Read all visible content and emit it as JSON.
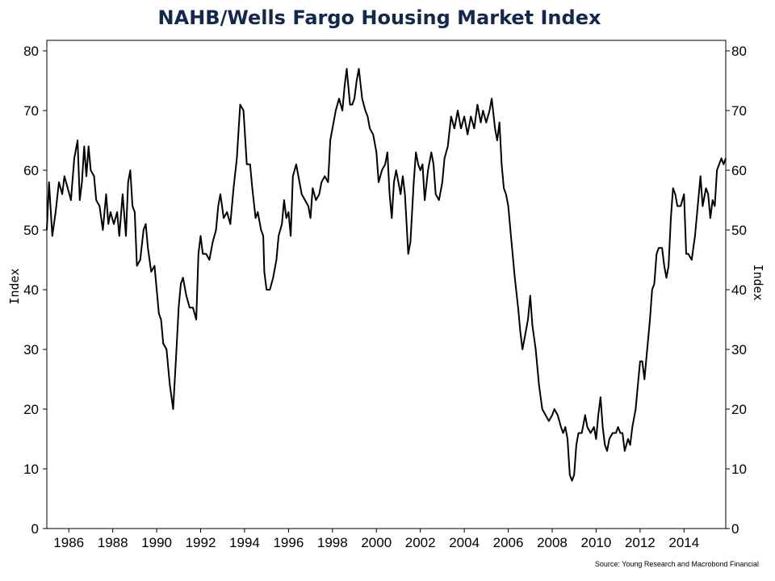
{
  "chart_data": {
    "type": "line",
    "title": "NAHB/Wells Fargo Housing Market Index",
    "ylabel_left": "Index",
    "ylabel_right": "Index",
    "source": "Source: Young Research and Macrobond Financial",
    "ylim": [
      0,
      80
    ],
    "xlim": [
      1985.0,
      2015.9
    ],
    "y_ticks": [
      0,
      10,
      20,
      30,
      40,
      50,
      60,
      70,
      80
    ],
    "x_ticks": [
      1986,
      1988,
      1990,
      1992,
      1994,
      1996,
      1998,
      2000,
      2002,
      2004,
      2006,
      2008,
      2010,
      2012,
      2014
    ],
    "grid": false,
    "series": [
      {
        "color": "#000000",
        "points": [
          [
            1985.0,
            50
          ],
          [
            1985.1,
            58
          ],
          [
            1985.25,
            49
          ],
          [
            1985.4,
            53
          ],
          [
            1985.55,
            58
          ],
          [
            1985.7,
            56
          ],
          [
            1985.8,
            59
          ],
          [
            1985.95,
            57
          ],
          [
            1986.1,
            55
          ],
          [
            1986.25,
            62
          ],
          [
            1986.4,
            65
          ],
          [
            1986.5,
            55
          ],
          [
            1986.6,
            58
          ],
          [
            1986.7,
            64
          ],
          [
            1986.8,
            59
          ],
          [
            1986.9,
            64
          ],
          [
            1987.0,
            60
          ],
          [
            1987.15,
            59
          ],
          [
            1987.25,
            55
          ],
          [
            1987.4,
            54
          ],
          [
            1987.55,
            50
          ],
          [
            1987.7,
            56
          ],
          [
            1987.8,
            51
          ],
          [
            1987.9,
            53
          ],
          [
            1988.05,
            51
          ],
          [
            1988.2,
            53
          ],
          [
            1988.3,
            49
          ],
          [
            1988.45,
            56
          ],
          [
            1988.6,
            49
          ],
          [
            1988.7,
            58
          ],
          [
            1988.8,
            60
          ],
          [
            1988.9,
            54
          ],
          [
            1989.0,
            53
          ],
          [
            1989.1,
            44
          ],
          [
            1989.25,
            45
          ],
          [
            1989.4,
            50
          ],
          [
            1989.5,
            51
          ],
          [
            1989.6,
            47
          ],
          [
            1989.75,
            43
          ],
          [
            1989.9,
            44
          ],
          [
            1990.0,
            40
          ],
          [
            1990.1,
            36
          ],
          [
            1990.2,
            35
          ],
          [
            1990.3,
            31
          ],
          [
            1990.45,
            30
          ],
          [
            1990.6,
            24
          ],
          [
            1990.75,
            20
          ],
          [
            1990.9,
            30
          ],
          [
            1991.0,
            37
          ],
          [
            1991.1,
            41
          ],
          [
            1991.2,
            42
          ],
          [
            1991.35,
            39
          ],
          [
            1991.5,
            37
          ],
          [
            1991.65,
            37
          ],
          [
            1991.8,
            35
          ],
          [
            1991.9,
            46
          ],
          [
            1992.0,
            49
          ],
          [
            1992.1,
            46
          ],
          [
            1992.25,
            46
          ],
          [
            1992.4,
            45
          ],
          [
            1992.55,
            48
          ],
          [
            1992.7,
            50
          ],
          [
            1992.8,
            54
          ],
          [
            1992.9,
            56
          ],
          [
            1993.05,
            52
          ],
          [
            1993.2,
            53
          ],
          [
            1993.35,
            51
          ],
          [
            1993.5,
            57
          ],
          [
            1993.65,
            62
          ],
          [
            1993.8,
            71
          ],
          [
            1993.95,
            70
          ],
          [
            1994.1,
            61
          ],
          [
            1994.25,
            61
          ],
          [
            1994.35,
            57
          ],
          [
            1994.5,
            52
          ],
          [
            1994.6,
            53
          ],
          [
            1994.75,
            50
          ],
          [
            1994.85,
            49
          ],
          [
            1994.9,
            43
          ],
          [
            1995.0,
            40
          ],
          [
            1995.15,
            40
          ],
          [
            1995.3,
            42
          ],
          [
            1995.45,
            45
          ],
          [
            1995.55,
            49
          ],
          [
            1995.7,
            51
          ],
          [
            1995.8,
            55
          ],
          [
            1995.9,
            52
          ],
          [
            1996.0,
            53
          ],
          [
            1996.1,
            49
          ],
          [
            1996.2,
            59
          ],
          [
            1996.35,
            61
          ],
          [
            1996.5,
            58
          ],
          [
            1996.6,
            56
          ],
          [
            1996.75,
            55
          ],
          [
            1996.9,
            54
          ],
          [
            1997.0,
            52
          ],
          [
            1997.1,
            57
          ],
          [
            1997.25,
            55
          ],
          [
            1997.4,
            56
          ],
          [
            1997.5,
            58
          ],
          [
            1997.65,
            59
          ],
          [
            1997.8,
            58
          ],
          [
            1997.9,
            65
          ],
          [
            1998.0,
            67
          ],
          [
            1998.15,
            70
          ],
          [
            1998.3,
            72
          ],
          [
            1998.45,
            70
          ],
          [
            1998.55,
            74
          ],
          [
            1998.65,
            77
          ],
          [
            1998.8,
            71
          ],
          [
            1998.9,
            71
          ],
          [
            1999.0,
            72
          ],
          [
            1999.1,
            75
          ],
          [
            1999.2,
            77
          ],
          [
            1999.35,
            72
          ],
          [
            1999.5,
            70
          ],
          [
            1999.6,
            69
          ],
          [
            1999.7,
            67
          ],
          [
            1999.85,
            66
          ],
          [
            2000.0,
            63
          ],
          [
            2000.1,
            58
          ],
          [
            2000.25,
            60
          ],
          [
            2000.4,
            61
          ],
          [
            2000.5,
            63
          ],
          [
            2000.6,
            56
          ],
          [
            2000.7,
            52
          ],
          [
            2000.8,
            58
          ],
          [
            2000.9,
            60
          ],
          [
            2001.0,
            58
          ],
          [
            2001.1,
            56
          ],
          [
            2001.2,
            59
          ],
          [
            2001.3,
            56
          ],
          [
            2001.45,
            46
          ],
          [
            2001.55,
            48
          ],
          [
            2001.7,
            58
          ],
          [
            2001.8,
            63
          ],
          [
            2001.9,
            61
          ],
          [
            2002.0,
            60
          ],
          [
            2002.1,
            61
          ],
          [
            2002.2,
            55
          ],
          [
            2002.35,
            60
          ],
          [
            2002.5,
            63
          ],
          [
            2002.6,
            61
          ],
          [
            2002.7,
            56
          ],
          [
            2002.85,
            55
          ],
          [
            2003.0,
            58
          ],
          [
            2003.1,
            62
          ],
          [
            2003.25,
            64
          ],
          [
            2003.4,
            69
          ],
          [
            2003.55,
            67
          ],
          [
            2003.7,
            70
          ],
          [
            2003.85,
            67
          ],
          [
            2004.0,
            69
          ],
          [
            2004.15,
            66
          ],
          [
            2004.3,
            69
          ],
          [
            2004.45,
            67
          ],
          [
            2004.6,
            71
          ],
          [
            2004.75,
            68
          ],
          [
            2004.85,
            70
          ],
          [
            2005.0,
            68
          ],
          [
            2005.15,
            70
          ],
          [
            2005.25,
            72
          ],
          [
            2005.4,
            67
          ],
          [
            2005.5,
            65
          ],
          [
            2005.6,
            68
          ],
          [
            2005.7,
            61
          ],
          [
            2005.8,
            57
          ],
          [
            2005.9,
            56
          ],
          [
            2006.0,
            54
          ],
          [
            2006.15,
            48
          ],
          [
            2006.3,
            42
          ],
          [
            2006.45,
            37
          ],
          [
            2006.55,
            33
          ],
          [
            2006.65,
            30
          ],
          [
            2006.8,
            33
          ],
          [
            2006.9,
            35
          ],
          [
            2007.0,
            39
          ],
          [
            2007.1,
            34
          ],
          [
            2007.25,
            30
          ],
          [
            2007.4,
            24
          ],
          [
            2007.55,
            20
          ],
          [
            2007.7,
            19
          ],
          [
            2007.85,
            18
          ],
          [
            2008.0,
            19
          ],
          [
            2008.1,
            20
          ],
          [
            2008.25,
            19
          ],
          [
            2008.4,
            17
          ],
          [
            2008.5,
            16
          ],
          [
            2008.6,
            17
          ],
          [
            2008.7,
            15
          ],
          [
            2008.8,
            9
          ],
          [
            2008.9,
            8
          ],
          [
            2009.0,
            9
          ],
          [
            2009.1,
            14
          ],
          [
            2009.2,
            16
          ],
          [
            2009.35,
            16
          ],
          [
            2009.5,
            19
          ],
          [
            2009.6,
            17
          ],
          [
            2009.75,
            16
          ],
          [
            2009.9,
            17
          ],
          [
            2010.0,
            15
          ],
          [
            2010.1,
            19
          ],
          [
            2010.2,
            22
          ],
          [
            2010.3,
            17
          ],
          [
            2010.4,
            14
          ],
          [
            2010.5,
            13
          ],
          [
            2010.6,
            15
          ],
          [
            2010.75,
            16
          ],
          [
            2010.9,
            16
          ],
          [
            2011.0,
            17
          ],
          [
            2011.1,
            16
          ],
          [
            2011.2,
            16
          ],
          [
            2011.3,
            13
          ],
          [
            2011.45,
            15
          ],
          [
            2011.55,
            14
          ],
          [
            2011.65,
            17
          ],
          [
            2011.8,
            20
          ],
          [
            2011.9,
            24
          ],
          [
            2012.0,
            28
          ],
          [
            2012.1,
            28
          ],
          [
            2012.2,
            25
          ],
          [
            2012.3,
            29
          ],
          [
            2012.45,
            35
          ],
          [
            2012.55,
            40
          ],
          [
            2012.65,
            41
          ],
          [
            2012.75,
            46
          ],
          [
            2012.85,
            47
          ],
          [
            2013.0,
            47
          ],
          [
            2013.1,
            44
          ],
          [
            2013.2,
            42
          ],
          [
            2013.3,
            44
          ],
          [
            2013.4,
            52
          ],
          [
            2013.5,
            57
          ],
          [
            2013.6,
            56
          ],
          [
            2013.7,
            54
          ],
          [
            2013.85,
            54
          ],
          [
            2014.0,
            56
          ],
          [
            2014.1,
            46
          ],
          [
            2014.2,
            46
          ],
          [
            2014.35,
            45
          ],
          [
            2014.5,
            49
          ],
          [
            2014.6,
            53
          ],
          [
            2014.75,
            59
          ],
          [
            2014.85,
            54
          ],
          [
            2015.0,
            57
          ],
          [
            2015.1,
            56
          ],
          [
            2015.2,
            52
          ],
          [
            2015.3,
            55
          ],
          [
            2015.4,
            54
          ],
          [
            2015.5,
            60
          ],
          [
            2015.6,
            61
          ],
          [
            2015.7,
            62
          ],
          [
            2015.8,
            61
          ],
          [
            2015.9,
            62
          ]
        ]
      }
    ]
  }
}
